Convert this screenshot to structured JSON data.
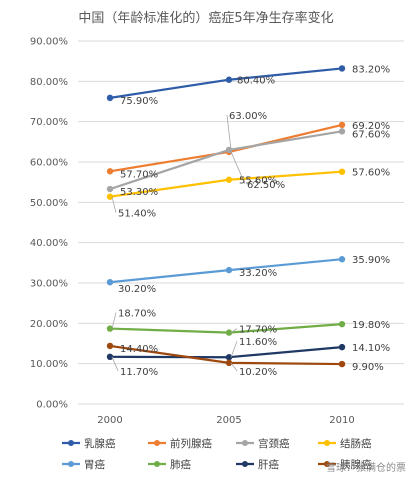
{
  "chart_data": {
    "type": "line",
    "title": "中国（年龄标准化的）癌症5年净生存率变化",
    "categories": [
      "2000",
      "2005",
      "2010"
    ],
    "ylim": [
      0,
      90
    ],
    "yticks": [
      "0.00%",
      "10.00%",
      "20.00%",
      "30.00%",
      "40.00%",
      "50.00%",
      "60.00%",
      "70.00%",
      "80.00%",
      "90.00%"
    ],
    "grid": true,
    "legend_position": "bottom",
    "series": [
      {
        "name": "乳腺癌",
        "color": "#2e5ca8",
        "values": [
          75.9,
          80.4,
          83.2
        ],
        "labels": [
          "75.90%",
          "80.40%",
          "83.20%"
        ]
      },
      {
        "name": "前列腺癌",
        "color": "#ed7d31",
        "values": [
          57.7,
          62.5,
          69.2
        ],
        "labels": [
          "57.70%",
          "62.50%",
          "69.20%"
        ]
      },
      {
        "name": "宫颈癌",
        "color": "#a5a5a5",
        "values": [
          53.3,
          63.0,
          67.6
        ],
        "labels": [
          "53.30%",
          "63.00%",
          "67.60%"
        ]
      },
      {
        "name": "结肠癌",
        "color": "#ffc000",
        "values": [
          51.4,
          55.6,
          57.6
        ],
        "labels": [
          "51.40%",
          "55.60%",
          "57.60%"
        ]
      },
      {
        "name": "胃癌",
        "color": "#5b9bd5",
        "values": [
          30.2,
          33.2,
          35.9
        ],
        "labels": [
          "30.20%",
          "33.20%",
          "35.90%"
        ]
      },
      {
        "name": "肺癌",
        "color": "#70ad47",
        "values": [
          18.7,
          17.7,
          19.8
        ],
        "labels": [
          "18.70%",
          "17.70%",
          "19.80%"
        ]
      },
      {
        "name": "肝癌",
        "color": "#1f3864",
        "values": [
          11.7,
          11.6,
          14.1
        ],
        "labels": [
          "11.70%",
          "11.60%",
          "14.10%"
        ]
      },
      {
        "name": "胰腺癌",
        "color": "#9e480e",
        "values": [
          14.4,
          10.2,
          9.9
        ],
        "labels": [
          "14.40%",
          "10.20%",
          "9.90%"
        ]
      }
    ]
  },
  "watermark": "雪球：张满仓的票"
}
